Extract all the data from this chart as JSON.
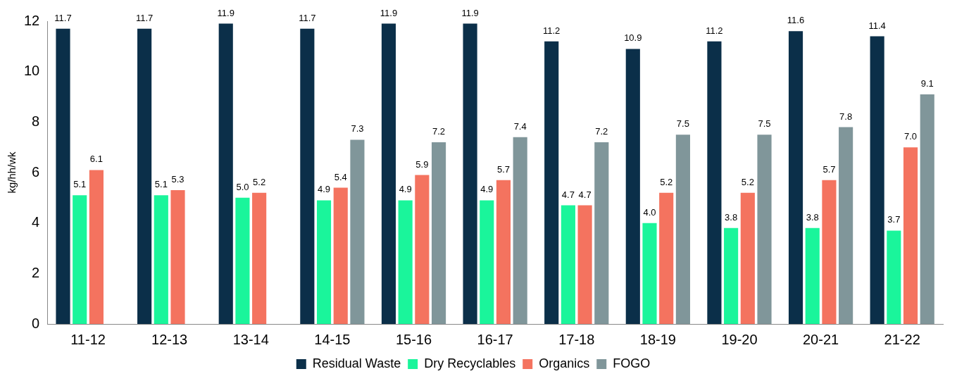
{
  "chart_data": {
    "type": "bar",
    "ylabel": "kg/hh/wk",
    "categories": [
      "11-12",
      "12-13",
      "13-14",
      "14-15",
      "15-16",
      "16-17",
      "17-18",
      "18-19",
      "19-20",
      "20-21",
      "21-22"
    ],
    "series": [
      {
        "name": "Residual Waste",
        "color": "#0b2f49",
        "values": [
          11.7,
          11.7,
          11.9,
          11.7,
          11.9,
          11.9,
          11.2,
          10.9,
          11.2,
          11.6,
          11.4
        ],
        "value_labels": [
          "11.7",
          "11.7",
          "11.9",
          "11.7",
          "11.9",
          "11.9",
          "11.2",
          "10.9",
          "11.2",
          "11.6",
          "11.4"
        ]
      },
      {
        "name": "Dry Recyclables",
        "color": "#1af59b",
        "values": [
          5.1,
          5.1,
          5.0,
          4.9,
          4.9,
          4.9,
          4.7,
          4.0,
          3.8,
          3.8,
          3.7
        ],
        "value_labels": [
          "5.1",
          "5.1",
          "5.0",
          "4.9",
          "4.9",
          "4.9",
          "4.7",
          "4.0",
          "3.8",
          "3.8",
          "3.7"
        ]
      },
      {
        "name": "Organics",
        "color": "#f4735f",
        "values": [
          6.1,
          5.3,
          5.2,
          5.4,
          5.9,
          5.7,
          4.7,
          5.2,
          5.2,
          5.7,
          7.0
        ],
        "value_labels": [
          "6.1",
          "5.3",
          "5.2",
          "5.4",
          "5.9",
          "5.7",
          "4.7",
          "5.2",
          "5.2",
          "5.7",
          "7.0"
        ]
      },
      {
        "name": "FOGO",
        "color": "#80969a",
        "values": [
          null,
          null,
          null,
          7.3,
          7.2,
          7.4,
          7.2,
          7.5,
          7.5,
          7.8,
          9.1
        ],
        "value_labels": [
          null,
          null,
          null,
          "7.3",
          "7.2",
          "7.4",
          "7.2",
          "7.5",
          "7.5",
          "7.8",
          "9.1"
        ]
      }
    ],
    "ylim": [
      0,
      12
    ],
    "yticks": [
      0,
      2,
      4,
      6,
      8,
      10,
      12
    ],
    "grid": false,
    "legend": "bottom"
  }
}
